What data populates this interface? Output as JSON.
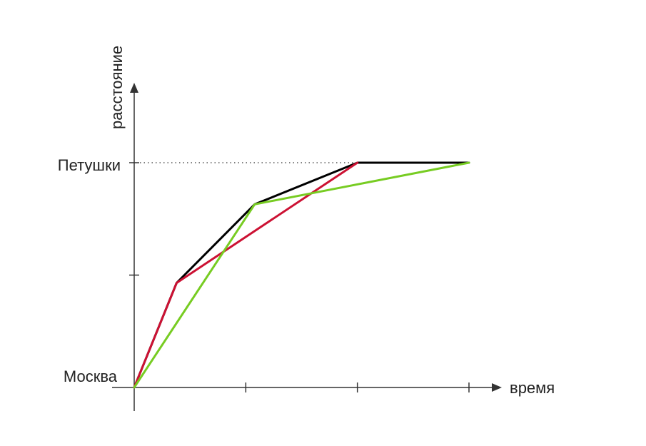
{
  "chart_data": {
    "type": "line",
    "xlabel": "время",
    "ylabel": "расстояние",
    "xlim": [
      0,
      3
    ],
    "ylim": [
      0,
      2
    ],
    "y_tick_values": [
      0,
      1,
      2
    ],
    "x_tick_values": [
      0,
      1,
      2,
      3
    ],
    "y_tick_labels": [
      {
        "value": 0,
        "label": "Москва"
      },
      {
        "value": 2,
        "label": "Петушки"
      }
    ],
    "reference_line": {
      "y": 2,
      "style": "dotted",
      "color": "#333333"
    },
    "grid": false,
    "series": [
      {
        "color": "#000000",
        "points": [
          [
            0,
            0
          ],
          [
            0.38,
            0.93
          ],
          [
            1.08,
            1.63
          ],
          [
            2.0,
            2.0
          ],
          [
            3.0,
            2.0
          ]
        ]
      },
      {
        "color": "#cc1133",
        "points": [
          [
            0,
            0
          ],
          [
            0.38,
            0.93
          ],
          [
            2.0,
            2.0
          ]
        ]
      },
      {
        "color": "#77cc22",
        "points": [
          [
            0,
            0
          ],
          [
            1.08,
            1.63
          ],
          [
            3.0,
            2.0
          ]
        ]
      }
    ]
  }
}
